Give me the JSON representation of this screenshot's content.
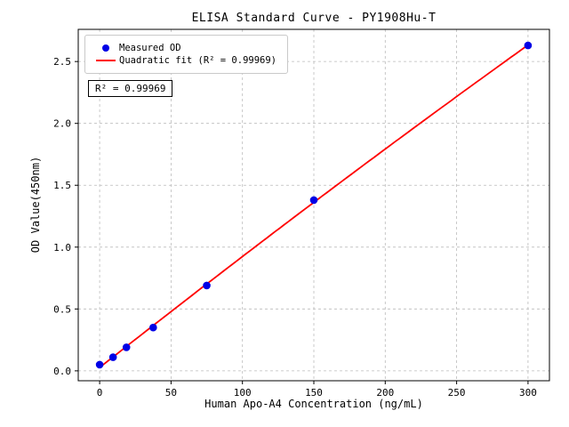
{
  "chart_data": {
    "type": "scatter",
    "title": "ELISA Standard Curve - PY1908Hu-T",
    "xlabel": "Human Apo-A4 Concentration (ng/mL)",
    "ylabel": "OD Value(450nm)",
    "xlim": [
      -15,
      315
    ],
    "ylim": [
      -0.08,
      2.76
    ],
    "xticks": [
      0,
      50,
      100,
      150,
      200,
      250,
      300
    ],
    "yticks": [
      0.0,
      0.5,
      1.0,
      1.5,
      2.0,
      2.5
    ],
    "grid": true,
    "grid_style": "dashed",
    "legend_position": "upper left",
    "series": [
      {
        "name": "Measured OD",
        "type": "scatter",
        "color": "#0000e6",
        "x": [
          0,
          9.375,
          18.75,
          37.5,
          75,
          150,
          300
        ],
        "y": [
          0.05,
          0.11,
          0.19,
          0.35,
          0.69,
          1.38,
          2.63
        ]
      },
      {
        "name": "Quadratic fit (R² = 0.99969)",
        "type": "quadratic-fit",
        "color": "#ff0000"
      }
    ],
    "annotation": "R² = 0.99969",
    "colors": {
      "grid": "#bbbbbb",
      "spine": "#000000"
    }
  }
}
